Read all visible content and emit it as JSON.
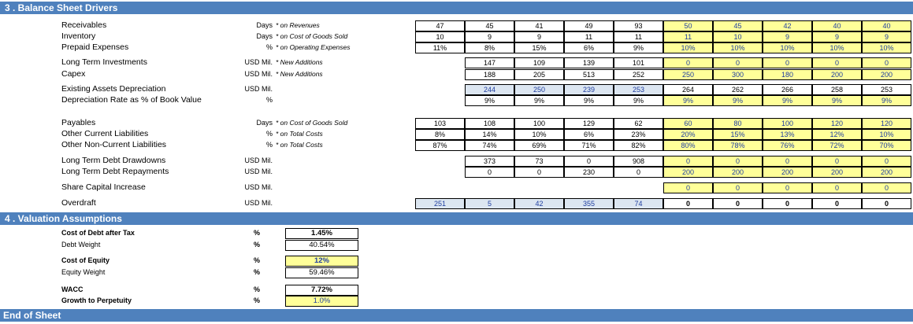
{
  "section3": {
    "title": "3 . Balance Sheet Drivers"
  },
  "section4": {
    "title": "4 . Valuation Assumptions"
  },
  "footer": {
    "title": "End of Sheet"
  },
  "rows": [
    {
      "label": "Receivables",
      "unit": "Days",
      "note": "* on Revenues",
      "hist": [
        "47",
        "45",
        "41",
        "49",
        "93"
      ],
      "fc": [
        "50",
        "45",
        "42",
        "40",
        "40"
      ]
    },
    {
      "label": "Inventory",
      "unit": "Days",
      "note": "* on Cost of Goods Sold",
      "hist": [
        "10",
        "9",
        "9",
        "11",
        "11"
      ],
      "fc": [
        "11",
        "10",
        "9",
        "9",
        "9"
      ]
    },
    {
      "label": "Prepaid Expenses",
      "unit": "%",
      "note": "* on Operating Expenses",
      "hist": [
        "11%",
        "8%",
        "15%",
        "6%",
        "9%"
      ],
      "fc": [
        "10%",
        "10%",
        "10%",
        "10%",
        "10%"
      ]
    },
    {
      "label": "Long Term Investments",
      "unit": "USD Mil.",
      "note": "* New Additions",
      "hist": [
        "",
        "147",
        "109",
        "139",
        "101"
      ],
      "fc": [
        "0",
        "0",
        "0",
        "0",
        "0"
      ]
    },
    {
      "label": "Capex",
      "unit": "USD Mil.",
      "note": "* New Additions",
      "hist": [
        "",
        "188",
        "205",
        "513",
        "252"
      ],
      "fc": [
        "250",
        "300",
        "180",
        "200",
        "200"
      ]
    },
    {
      "label": "Existing Assets Depreciation",
      "unit": "USD Mil.",
      "note": "",
      "hist": [
        "",
        "244",
        "250",
        "239",
        "253"
      ],
      "fc": [
        "264",
        "262",
        "266",
        "258",
        "253"
      ]
    },
    {
      "label": "Depreciation Rate as % of Book Value",
      "unit": "%",
      "note": "",
      "hist": [
        "",
        "9%",
        "9%",
        "9%",
        "9%"
      ],
      "fc": [
        "9%",
        "9%",
        "9%",
        "9%",
        "9%"
      ]
    },
    {
      "label": "Payables",
      "unit": "Days",
      "note": "* on Cost of Goods Sold",
      "hist": [
        "103",
        "108",
        "100",
        "129",
        "62"
      ],
      "fc": [
        "60",
        "80",
        "100",
        "120",
        "120"
      ]
    },
    {
      "label": "Other Current Liabilities",
      "unit": "%",
      "note": "* on Total Costs",
      "hist": [
        "8%",
        "14%",
        "10%",
        "6%",
        "23%"
      ],
      "fc": [
        "20%",
        "15%",
        "13%",
        "12%",
        "10%"
      ]
    },
    {
      "label": "Other Non-Current Liabilities",
      "unit": "%",
      "note": "* on Total Costs",
      "hist": [
        "87%",
        "74%",
        "69%",
        "71%",
        "82%"
      ],
      "fc": [
        "80%",
        "78%",
        "76%",
        "72%",
        "70%"
      ]
    },
    {
      "label": "Long Term Debt Drawdowns",
      "unit": "USD Mil.",
      "note": "",
      "hist": [
        "",
        "373",
        "73",
        "0",
        "908"
      ],
      "fc": [
        "0",
        "0",
        "0",
        "0",
        "0"
      ]
    },
    {
      "label": "Long Term Debt Repayments",
      "unit": "USD Mil.",
      "note": "",
      "hist": [
        "",
        "0",
        "0",
        "230",
        "0"
      ],
      "fc": [
        "200",
        "200",
        "200",
        "200",
        "200"
      ]
    },
    {
      "label": "Share Capital Increase",
      "unit": "USD Mil.",
      "note": "",
      "hist": [
        "",
        "",
        "",
        "",
        ""
      ],
      "fc": [
        "0",
        "0",
        "0",
        "0",
        "0"
      ]
    },
    {
      "label": "Overdraft",
      "unit": "USD Mil.",
      "note": "",
      "hist": [
        "251",
        "5",
        "42",
        "355",
        "74"
      ],
      "fc": [
        "0",
        "0",
        "0",
        "0",
        "0"
      ]
    }
  ],
  "valuation": [
    {
      "label": "Cost of Debt after Tax",
      "unit": "%",
      "value": "1.45%"
    },
    {
      "label": "Debt Weight",
      "unit": "%",
      "value": "40.54%"
    },
    {
      "label": "Cost of Equity",
      "unit": "%",
      "value": "12%"
    },
    {
      "label": "Equity Weight",
      "unit": "%",
      "value": "59.46%"
    },
    {
      "label": "WACC",
      "unit": "%",
      "value": "7.72%"
    },
    {
      "label": "Growth to Perpetuity",
      "unit": "%",
      "value": "1.0%"
    }
  ]
}
